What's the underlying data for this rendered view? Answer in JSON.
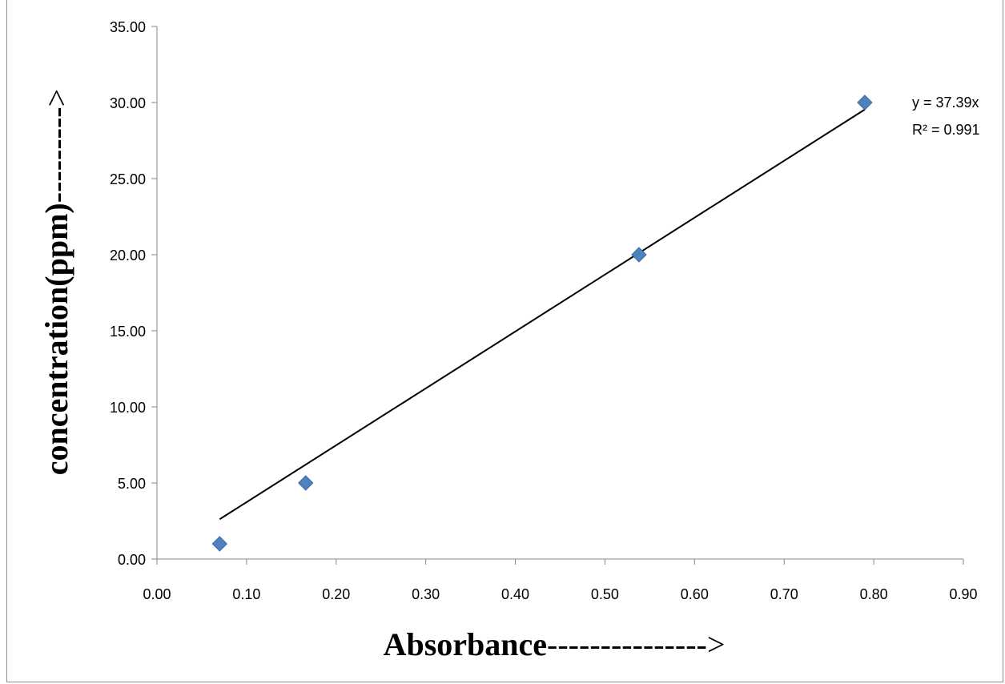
{
  "chart_data": {
    "type": "scatter",
    "title": "",
    "xlabel": "Absorbance",
    "xlabel_arrow": "--------------->",
    "ylabel": "concentration(ppm)",
    "ylabel_arrow": "--------->",
    "xlim": [
      0,
      0.9
    ],
    "ylim": [
      0,
      35
    ],
    "x_ticks": [
      0,
      0.1,
      0.2,
      0.3,
      0.4,
      0.5,
      0.6,
      0.7,
      0.8,
      0.9
    ],
    "y_ticks": [
      0,
      5,
      10,
      15,
      20,
      25,
      30,
      35
    ],
    "x_tick_labels": [
      "0.00",
      "0.10",
      "0.20",
      "0.30",
      "0.40",
      "0.50",
      "0.60",
      "0.70",
      "0.80",
      "0.90"
    ],
    "y_tick_labels": [
      "0.00",
      "5.00",
      "10.00",
      "15.00",
      "20.00",
      "25.00",
      "30.00",
      "35.00"
    ],
    "grid": false,
    "series": [
      {
        "marker": "diamond",
        "color": "#4f81bd",
        "points": [
          {
            "x": 0.07,
            "y": 1
          },
          {
            "x": 0.166,
            "y": 5
          },
          {
            "x": 0.538,
            "y": 20
          },
          {
            "x": 0.79,
            "y": 30
          }
        ]
      }
    ],
    "trendline": {
      "type": "linear",
      "slope": 37.39,
      "intercept": 0,
      "x_range": [
        0.07,
        0.79
      ],
      "equation": "y = 37.39x",
      "r_squared": "R² = 0.991",
      "color": "#000000"
    }
  }
}
